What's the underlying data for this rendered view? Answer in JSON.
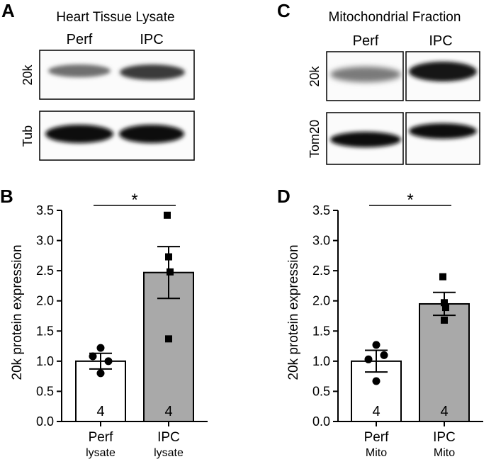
{
  "blots": {
    "A": {
      "letter": "A",
      "title": "Heart Tissue Lysate",
      "lanes": [
        "Perf",
        "IPC"
      ],
      "rows": [
        "20k",
        "Tub"
      ]
    },
    "C": {
      "letter": "C",
      "title": "Mitochondrial Fraction",
      "lanes": [
        "Perf",
        "IPC"
      ],
      "rows": [
        "20k",
        "Tom20"
      ]
    }
  },
  "chart_data": [
    {
      "panel": "B",
      "type": "bar",
      "categories": [
        "Perf",
        "IPC"
      ],
      "subcategories": [
        "lysate",
        "lysate"
      ],
      "values": [
        1.0,
        2.47
      ],
      "sem": [
        0.13,
        0.43
      ],
      "n": [
        "4",
        "4"
      ],
      "points": [
        [
          1.22,
          1.0,
          1.08,
          0.8
        ],
        [
          3.42,
          2.73,
          2.48,
          1.37
        ]
      ],
      "bar_colors": [
        "#ffffff",
        "#a9a9a9"
      ],
      "ylabel": "20k protein expression",
      "ylim": [
        0,
        3.5
      ],
      "yticks": [
        "0.0",
        "0.5",
        "1.0",
        "1.5",
        "2.0",
        "2.5",
        "3.0",
        "3.5"
      ],
      "significance": "*"
    },
    {
      "panel": "D",
      "type": "bar",
      "categories": [
        "Perf",
        "IPC"
      ],
      "subcategories": [
        "Mito",
        "Mito"
      ],
      "values": [
        1.0,
        1.95
      ],
      "sem": [
        0.18,
        0.19
      ],
      "n": [
        "4",
        "4"
      ],
      "points": [
        [
          1.27,
          1.1,
          1.03,
          0.67
        ],
        [
          2.4,
          1.97,
          1.89,
          1.68
        ]
      ],
      "bar_colors": [
        "#ffffff",
        "#a9a9a9"
      ],
      "ylabel": "20k protein expression",
      "ylim": [
        0,
        3.5
      ],
      "yticks": [
        "0.0",
        "0.5",
        "1.0",
        "1.5",
        "2.0",
        "2.5",
        "3.0",
        "3.5"
      ],
      "significance": "*"
    }
  ]
}
